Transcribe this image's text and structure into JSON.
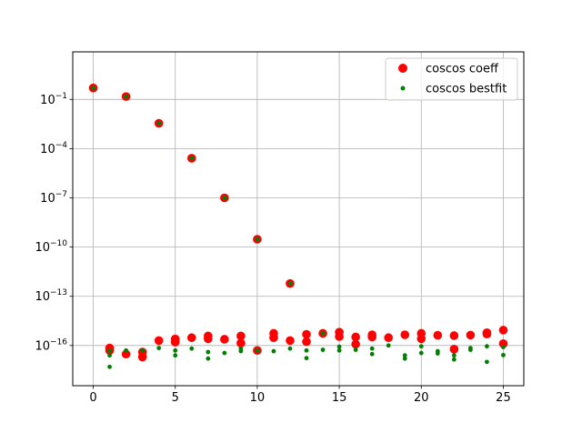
{
  "chart_data": {
    "type": "scatter",
    "title": "",
    "xlabel": "",
    "ylabel": "",
    "xlim": [
      -1.25,
      26.25
    ],
    "ylim_log10": [
      -18.45,
      1.9
    ],
    "yscale": "log",
    "grid": true,
    "legend_position": "top-right",
    "x_ticks": [
      {
        "value": 0,
        "label": "0"
      },
      {
        "value": 5,
        "label": "5"
      },
      {
        "value": 10,
        "label": "10"
      },
      {
        "value": 15,
        "label": "15"
      },
      {
        "value": 20,
        "label": "20"
      },
      {
        "value": 25,
        "label": "25"
      }
    ],
    "y_ticks": [
      {
        "exp": -1,
        "label_base": "10",
        "label_exp": "−1"
      },
      {
        "exp": -4,
        "label_base": "10",
        "label_exp": "−4"
      },
      {
        "exp": -7,
        "label_base": "10",
        "label_exp": "−7"
      },
      {
        "exp": -10,
        "label_base": "10",
        "label_exp": "−10"
      },
      {
        "exp": -13,
        "label_base": "10",
        "label_exp": "−13"
      },
      {
        "exp": -16,
        "label_base": "10",
        "label_exp": "−16"
      }
    ],
    "series": [
      {
        "name": "coscos coeff",
        "color": "#ff0000",
        "marker": "large-circle",
        "points": [
          [
            0,
            0.5
          ],
          [
            1,
            5e-17
          ],
          [
            1,
            7e-17
          ],
          [
            2,
            3e-17
          ],
          [
            2,
            0.15
          ],
          [
            3,
            4e-17
          ],
          [
            3,
            2e-17
          ],
          [
            4,
            2e-16
          ],
          [
            4,
            0.0035
          ],
          [
            5,
            2.5e-16
          ],
          [
            5,
            1.6e-16
          ],
          [
            6,
            3e-16
          ],
          [
            6,
            2.6e-05
          ],
          [
            7,
            3.8e-16
          ],
          [
            7,
            2.6e-16
          ],
          [
            8,
            2.4e-16
          ],
          [
            8,
            1e-07
          ],
          [
            9,
            1.4e-16
          ],
          [
            9,
            3.8e-16
          ],
          [
            10,
            5e-17
          ],
          [
            10,
            3e-10
          ],
          [
            11,
            5.5e-16
          ],
          [
            11,
            3e-16
          ],
          [
            12,
            2e-16
          ],
          [
            12,
            6e-13
          ],
          [
            13,
            4.8e-16
          ],
          [
            13,
            1.7e-16
          ],
          [
            14,
            5.5e-16
          ],
          [
            15,
            6.5e-16
          ],
          [
            15,
            3.5e-16
          ],
          [
            16,
            3.3e-16
          ],
          [
            16,
            1.2e-16
          ],
          [
            17,
            4.5e-16
          ],
          [
            17,
            3.3e-16
          ],
          [
            18,
            3e-16
          ],
          [
            19,
            4.5e-16
          ],
          [
            20,
            5.5e-16
          ],
          [
            20,
            2.6e-16
          ],
          [
            21,
            4.2e-16
          ],
          [
            22,
            4e-16
          ],
          [
            22,
            6e-17
          ],
          [
            23,
            4.3e-16
          ],
          [
            24,
            6e-16
          ],
          [
            24,
            5e-16
          ],
          [
            25,
            8.7e-16
          ],
          [
            25,
            1.3e-16
          ]
        ]
      },
      {
        "name": "coscos bestfit",
        "color": "#008000",
        "marker": "small-dot",
        "points": [
          [
            0,
            0.5
          ],
          [
            1,
            5e-17
          ],
          [
            1,
            2.5e-17
          ],
          [
            1,
            5e-18
          ],
          [
            2,
            5e-17
          ],
          [
            2,
            0.15
          ],
          [
            3,
            5e-17
          ],
          [
            4,
            7e-17
          ],
          [
            4,
            0.0035
          ],
          [
            5,
            5e-17
          ],
          [
            5,
            2.5e-17
          ],
          [
            6,
            6.5e-17
          ],
          [
            6,
            2.6e-05
          ],
          [
            7,
            4e-17
          ],
          [
            7,
            1.6e-17
          ],
          [
            8,
            3.5e-17
          ],
          [
            8,
            1e-07
          ],
          [
            9,
            6.5e-17
          ],
          [
            9,
            4.5e-17
          ],
          [
            10,
            5e-17
          ],
          [
            10,
            3e-10
          ],
          [
            11,
            4.5e-17
          ],
          [
            12,
            6.5e-17
          ],
          [
            12,
            6e-13
          ],
          [
            13,
            5e-17
          ],
          [
            13,
            1.7e-17
          ],
          [
            14,
            5.5e-17
          ],
          [
            14,
            5.5e-16
          ],
          [
            15,
            8.5e-17
          ],
          [
            15,
            5e-17
          ],
          [
            16,
            5.5e-17
          ],
          [
            17,
            6.5e-17
          ],
          [
            17,
            3e-17
          ],
          [
            18,
            1e-16
          ],
          [
            19,
            2.5e-17
          ],
          [
            19,
            1.6e-17
          ],
          [
            20,
            9e-17
          ],
          [
            20,
            3.5e-17
          ],
          [
            21,
            4.5e-17
          ],
          [
            21,
            3.3e-17
          ],
          [
            22,
            2.5e-17
          ],
          [
            22,
            1.4e-17
          ],
          [
            23,
            7e-17
          ],
          [
            23,
            5.5e-17
          ],
          [
            24,
            9e-17
          ],
          [
            24,
            1e-17
          ],
          [
            25,
            8e-17
          ],
          [
            25,
            2.6e-17
          ]
        ]
      }
    ]
  }
}
